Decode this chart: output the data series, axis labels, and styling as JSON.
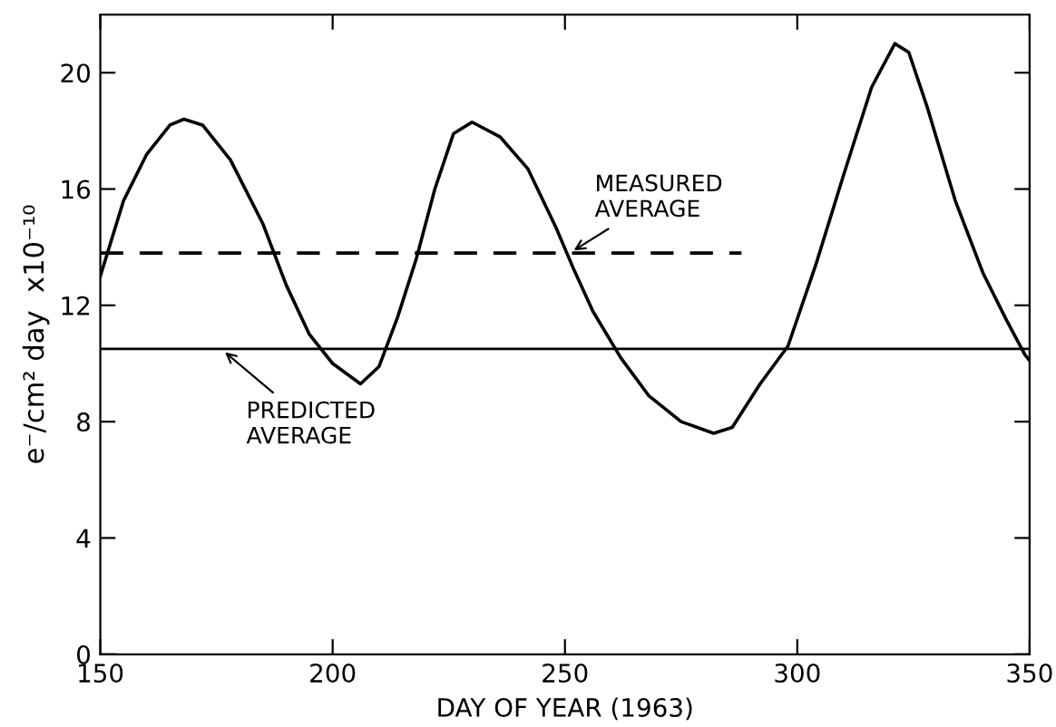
{
  "chart_data": {
    "type": "line",
    "xlabel": "DAY OF YEAR (1963)",
    "ylabel": "e⁻/cm² day  x10⁻¹⁰",
    "xlim": [
      150,
      350
    ],
    "xticks": [
      150,
      200,
      250,
      300,
      350
    ],
    "ylim": [
      0,
      22
    ],
    "yticks": [
      0,
      4,
      8,
      12,
      16,
      20
    ],
    "grid": false,
    "legend": false,
    "series": [
      {
        "color": "#000000",
        "line_style": "solid",
        "x": [
          150,
          155,
          160,
          165,
          168,
          172,
          178,
          185,
          190,
          195,
          200,
          206,
          210,
          214,
          218,
          222,
          226,
          230,
          236,
          242,
          248,
          252,
          256,
          262,
          268,
          275,
          282,
          286,
          292,
          298,
          304,
          310,
          316,
          321,
          324,
          328,
          334,
          340,
          345,
          349,
          350
        ],
        "values": [
          13.0,
          15.6,
          17.2,
          18.2,
          18.4,
          18.2,
          17.0,
          14.8,
          12.7,
          11.0,
          10.0,
          9.3,
          9.9,
          11.6,
          13.6,
          16.0,
          17.9,
          18.3,
          17.8,
          16.7,
          14.7,
          13.2,
          11.8,
          10.2,
          8.9,
          8.0,
          7.6,
          7.8,
          9.3,
          10.6,
          13.4,
          16.5,
          19.5,
          21.0,
          20.7,
          18.8,
          15.6,
          13.1,
          11.5,
          10.3,
          10.1
        ]
      },
      {
        "color": "#000000",
        "line_style": "dashed",
        "x": [
          150,
          288
        ],
        "values": [
          13.8,
          13.8
        ]
      }
    ],
    "ref_lines": [
      {
        "axis": "y",
        "value": 10.5,
        "color": "#000000",
        "line_style": "solid"
      }
    ],
    "annotations": [
      {
        "text": "MEASURED\nAVERAGE",
        "x": 251,
        "y": 13.8
      },
      {
        "text": "PREDICTED\nAVERAGE",
        "x": 176,
        "y": 10.5
      }
    ]
  }
}
